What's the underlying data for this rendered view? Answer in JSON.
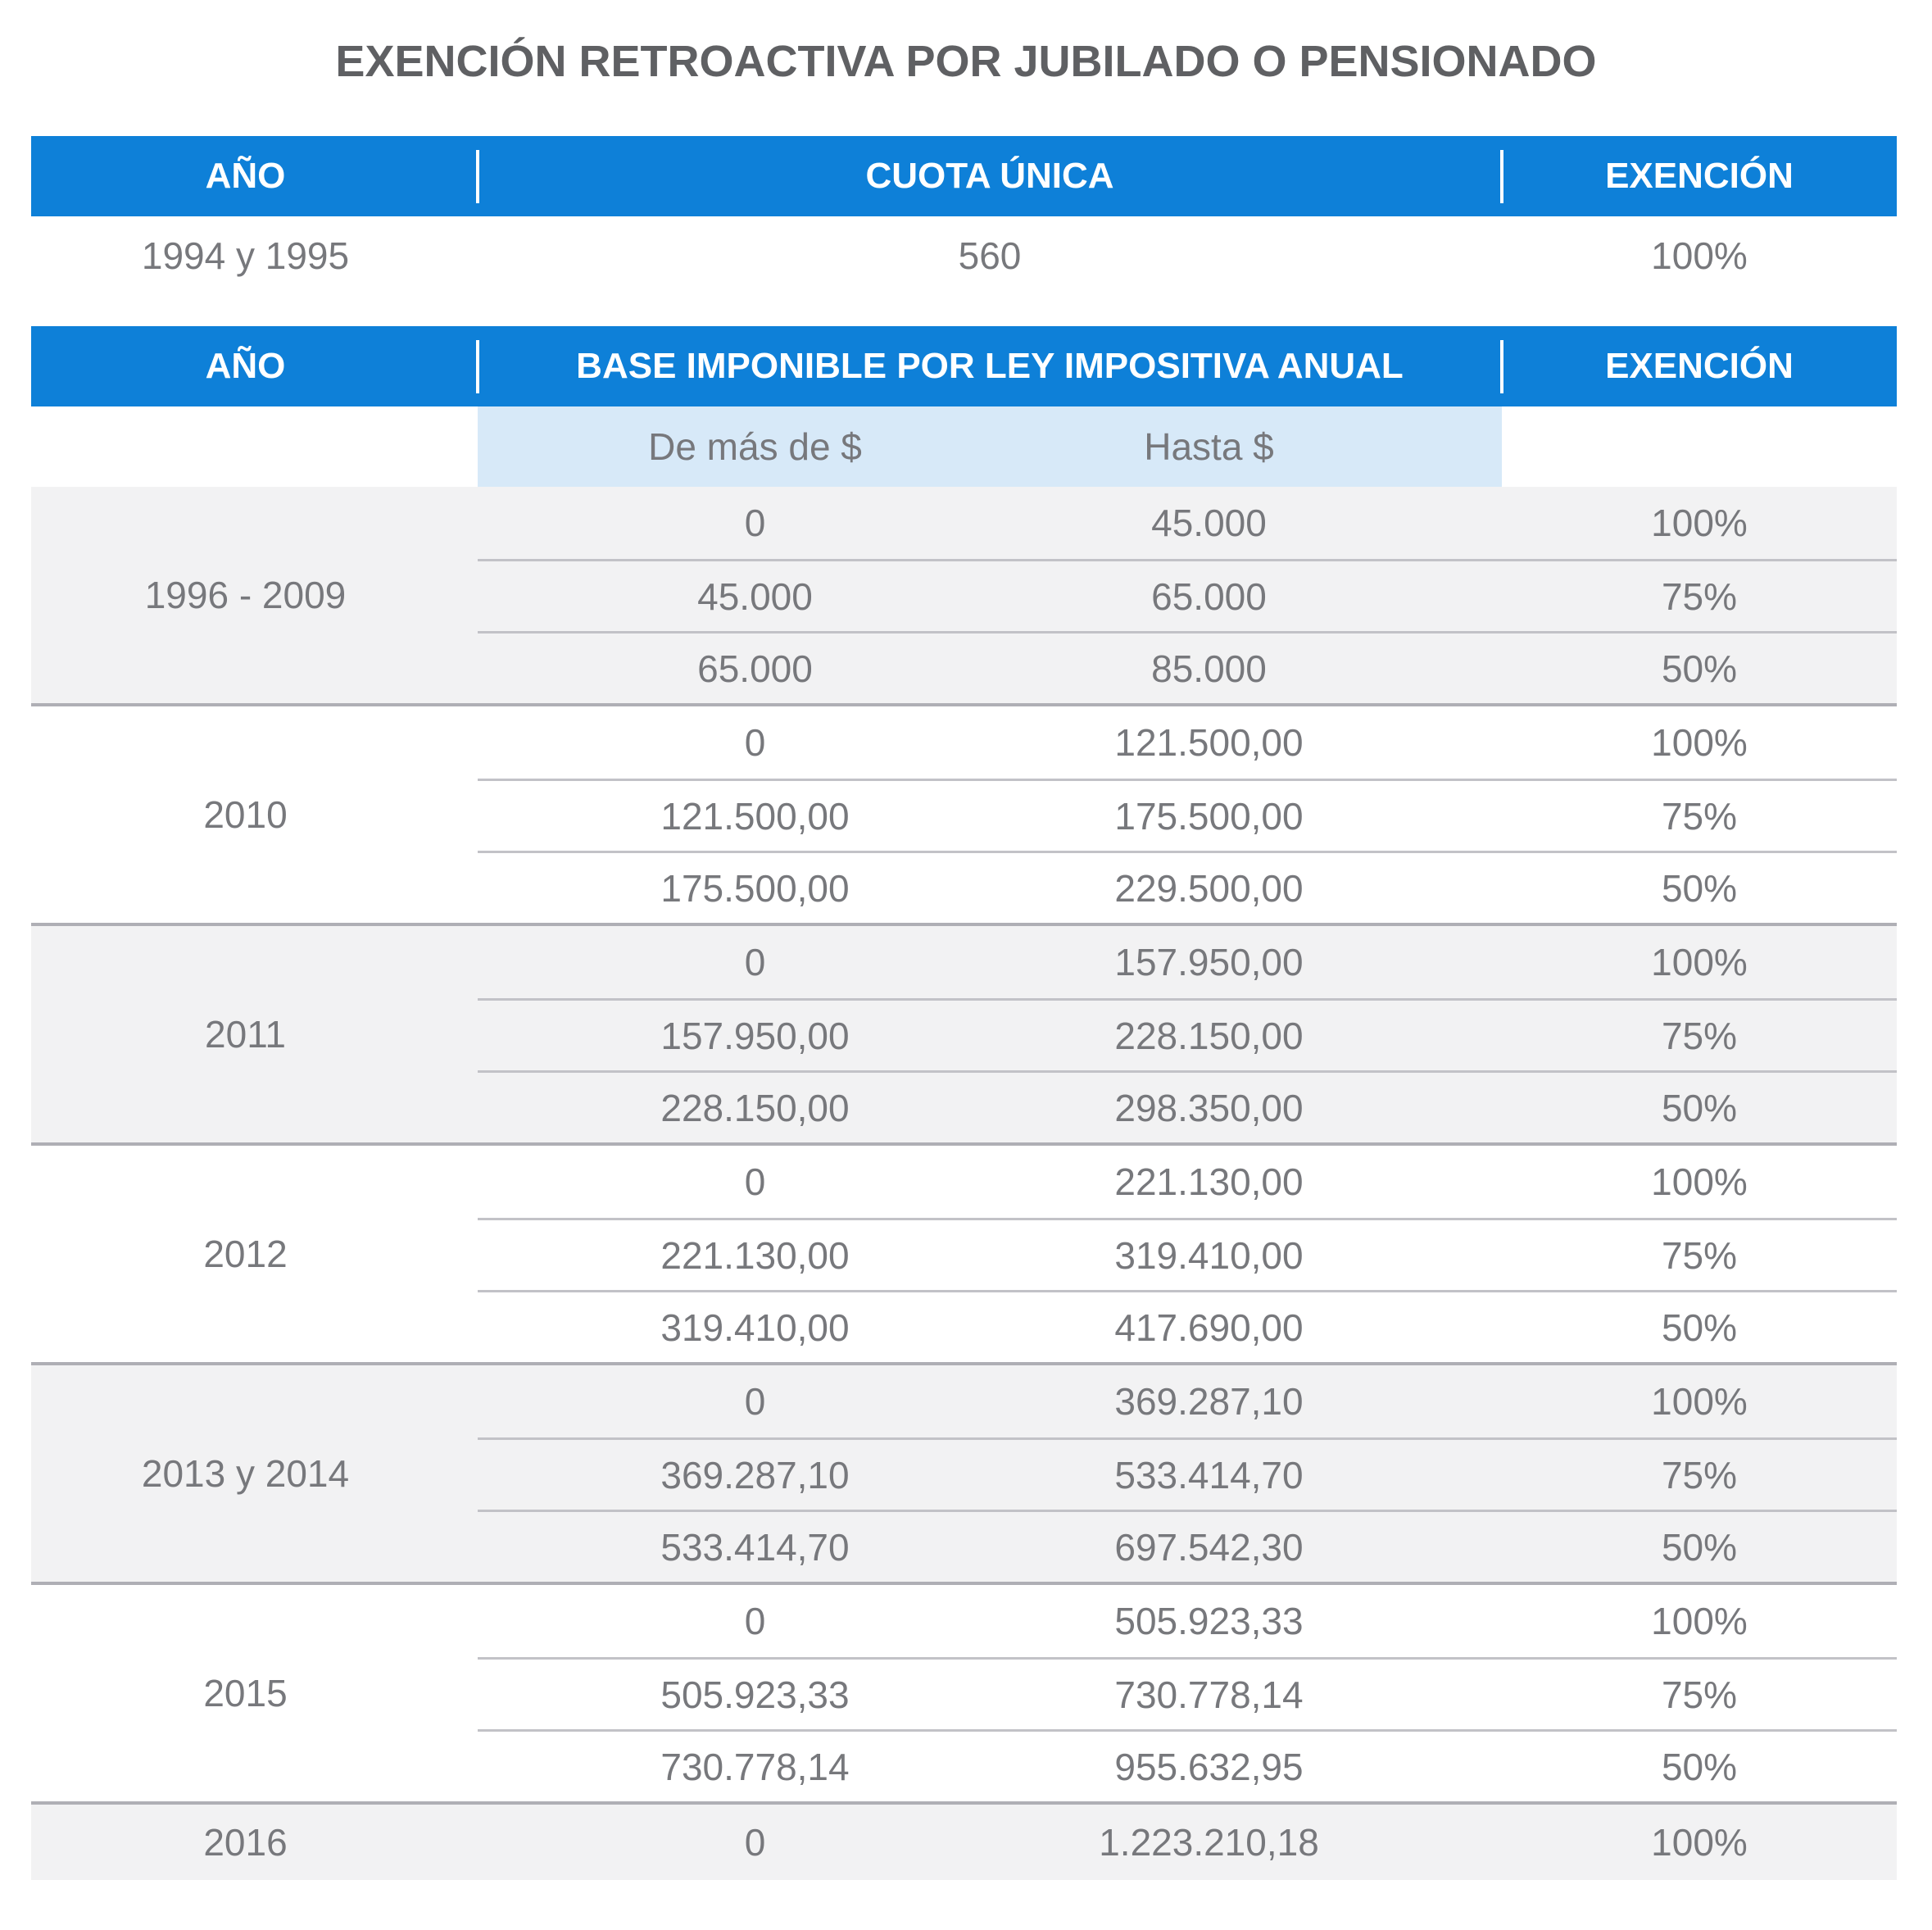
{
  "title": "EXENCIÓN RETROACTIVA POR JUBILADO O PENSIONADO",
  "colors": {
    "header_blue": "#0e80d8",
    "subheader_blue": "#d7e9f8",
    "shaded_row_gray": "#f2f2f3",
    "body_text_gray": "#77787c",
    "title_gray": "#5f6063",
    "group_divider": "#afafb5",
    "inner_divider": "#c2c2c7"
  },
  "table1": {
    "headers": {
      "year": "AÑO",
      "mid": "CUOTA ÚNICA",
      "exencion": "EXENCIÓN"
    },
    "row": {
      "year": "1994 y 1995",
      "cuota": "560",
      "exencion": "100%"
    }
  },
  "table2": {
    "headers": {
      "year": "AÑO",
      "mid": "BASE IMPONIBLE POR LEY IMPOSITIVA ANUAL",
      "exencion": "EXENCIÓN"
    },
    "subheaders": {
      "from": "De más de $",
      "to": "Hasta $"
    },
    "groups": [
      {
        "year": "1996 - 2009",
        "rows": [
          [
            "0",
            "45.000",
            "100%"
          ],
          [
            "45.000",
            "65.000",
            "75%"
          ],
          [
            "65.000",
            "85.000",
            "50%"
          ]
        ]
      },
      {
        "year": "2010",
        "rows": [
          [
            "0",
            "121.500,00",
            "100%"
          ],
          [
            "121.500,00",
            "175.500,00",
            "75%"
          ],
          [
            "175.500,00",
            "229.500,00",
            "50%"
          ]
        ]
      },
      {
        "year": "2011",
        "rows": [
          [
            "0",
            "157.950,00",
            "100%"
          ],
          [
            "157.950,00",
            "228.150,00",
            "75%"
          ],
          [
            "228.150,00",
            "298.350,00",
            "50%"
          ]
        ]
      },
      {
        "year": "2012",
        "rows": [
          [
            "0",
            "221.130,00",
            "100%"
          ],
          [
            "221.130,00",
            "319.410,00",
            "75%"
          ],
          [
            "319.410,00",
            "417.690,00",
            "50%"
          ]
        ]
      },
      {
        "year": "2013 y 2014",
        "rows": [
          [
            "0",
            "369.287,10",
            "100%"
          ],
          [
            "369.287,10",
            "533.414,70",
            "75%"
          ],
          [
            "533.414,70",
            "697.542,30",
            "50%"
          ]
        ]
      },
      {
        "year": "2015",
        "rows": [
          [
            "0",
            "505.923,33",
            "100%"
          ],
          [
            "505.923,33",
            "730.778,14",
            "75%"
          ],
          [
            "730.778,14",
            "955.632,95",
            "50%"
          ]
        ]
      },
      {
        "year": "2016",
        "rows": [
          [
            "0",
            "1.223.210,18",
            "100%"
          ]
        ]
      }
    ]
  }
}
